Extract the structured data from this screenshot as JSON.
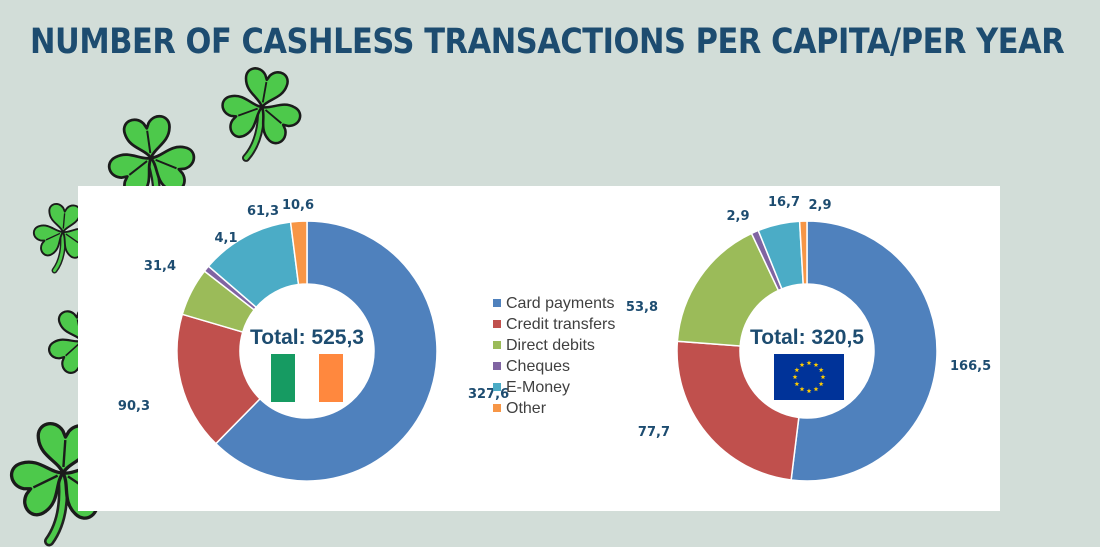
{
  "title": "NUMBER OF CASHLESS TRANSACTIONS PER CAPITA/PER YEAR",
  "colors": {
    "background": "#d2ddd8",
    "title": "#1d4c70",
    "series": [
      "#4f81bd",
      "#c0504d",
      "#9bbb59",
      "#8064a2",
      "#4bacc6",
      "#f79646"
    ]
  },
  "chart_data": {
    "type": "pie",
    "legend": {
      "position": "center",
      "entries": [
        "Card payments",
        "Credit transfers",
        "Direct debits",
        "Cheques",
        "E-Money",
        "Other"
      ]
    },
    "charts": [
      {
        "id": "ireland",
        "total_label": "Total: 525,3",
        "flag": "ireland-flag-icon",
        "values": [
          327.6,
          90.3,
          31.4,
          4.1,
          61.3,
          10.6
        ],
        "value_labels": [
          "327,6",
          "90,3",
          "31,4",
          "4,1",
          "61,3",
          "10,6"
        ]
      },
      {
        "id": "eu",
        "total_label": "Total: 320,5",
        "flag": "eu-flag-icon",
        "values": [
          166.5,
          77.7,
          53.8,
          2.9,
          16.7,
          2.9
        ],
        "value_labels": [
          "166,5",
          "77,7",
          "53,8",
          "2,9",
          "16,7",
          "2,9"
        ]
      }
    ]
  }
}
